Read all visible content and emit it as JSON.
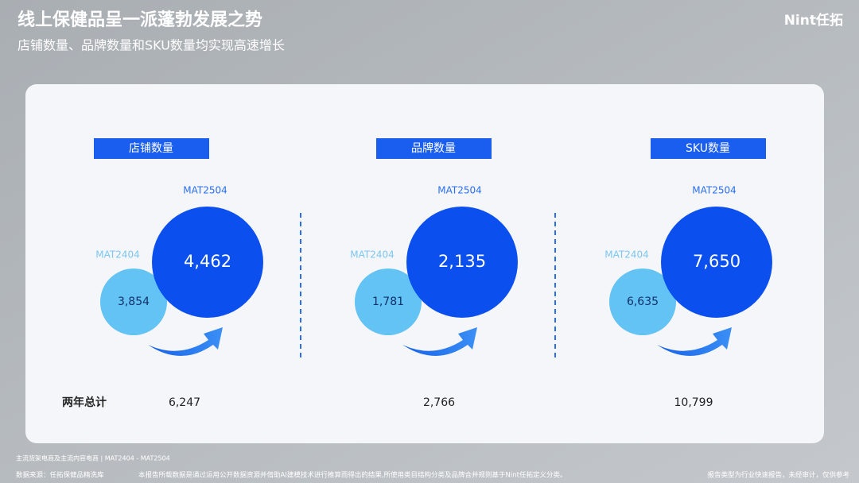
{
  "header": {
    "title": "线上保健品呈一派蓬勃发展之势",
    "subtitle": "店铺数量、品牌数量和SKU数量均实现高速增长",
    "logo": "Nint任拓"
  },
  "panels": [
    {
      "label": "店铺数量",
      "current_period": "MAT2504",
      "current_value": "4,462",
      "previous_period": "MAT2404",
      "previous_value": "3,854",
      "total": "6,247"
    },
    {
      "label": "品牌数量",
      "current_period": "MAT2504",
      "current_value": "2,135",
      "previous_period": "MAT2404",
      "previous_value": "1,781",
      "total": "2,766"
    },
    {
      "label": "SKU数量",
      "current_period": "MAT2504",
      "current_value": "7,650",
      "previous_period": "MAT2404",
      "previous_value": "6,635",
      "total": "10,799"
    }
  ],
  "total_label": "两年总计",
  "footer": {
    "scope": "主流货架电商及主流内容电商 | MAT2404 - MAT2504",
    "source": "数据来源：任拓保健品精洗库",
    "disclaimer": "本报告所载数据是通过运用公开数据资源并借助AI建模技术进行推算而得出的结果,所使用类目结构分类及品牌合并规则基于Nint任拓定义分类。",
    "note": "报告类型为行业快速报告，未经审计，仅供参考"
  }
}
